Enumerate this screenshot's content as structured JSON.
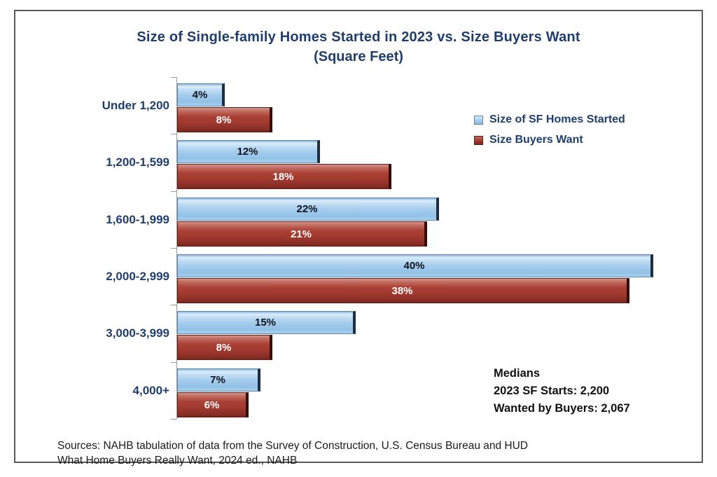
{
  "chart_data": {
    "type": "bar",
    "orientation": "horizontal",
    "title": "Size of Single-family Homes Started in 2023 vs. Size Buyers Want",
    "subtitle": "(Square Feet)",
    "categories": [
      "Under 1,200",
      "1,200-1,599",
      "1,600-1,999",
      "2,000-2,999",
      "3,000-3,999",
      "4,000+"
    ],
    "series": [
      {
        "name": "Size of SF Homes Started",
        "values": [
          4,
          12,
          22,
          40,
          15,
          7
        ],
        "color": "#A4CCEC"
      },
      {
        "name": "Size Buyers Want",
        "values": [
          8,
          18,
          21,
          38,
          8,
          6
        ],
        "color": "#A23A30"
      }
    ],
    "value_suffix": "%",
    "xlim": [
      0,
      40
    ],
    "grid": false,
    "legend_position": "upper-right",
    "annotations": {
      "medians_title": "Medians",
      "medians_line1": "2023 SF Starts: 2,200",
      "medians_line2": "Wanted by Buyers: 2,067"
    }
  },
  "footer": {
    "source_line1": "Sources: NAHB tabulation of data from the Survey of Construction, U.S. Census Bureau and HUD",
    "source_line2": "What Home Buyers Really Want, 2024 ed., NAHB"
  },
  "colors": {
    "title_text": "#1F3E6E",
    "category_label_text": "#1F3E6E",
    "legend_text": "#1F3E6E",
    "axis": "#9A9A9A",
    "started_bar_fill": "#A4CCEC",
    "started_bar_border": "#5E87AD",
    "started_bar_shadow": "#1D2E41",
    "started_value_text": "#10131F",
    "want_bar_fill": "#A23A30",
    "want_bar_border": "#5F1F19",
    "want_bar_shadow": "#380D09",
    "want_value_text": "#FFFFFF",
    "frame_border": "#58595B",
    "medians_text": "#111111",
    "sources_text": "#1A1A1A"
  }
}
